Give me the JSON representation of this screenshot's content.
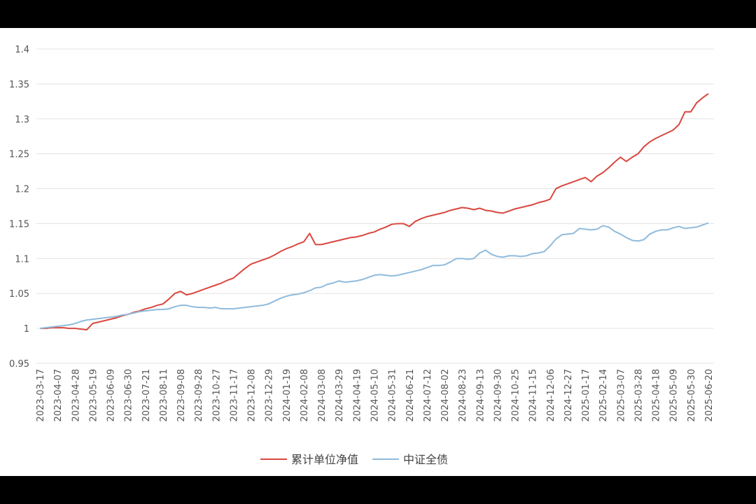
{
  "chart_data": {
    "type": "line",
    "categories": [
      "2023-03-17",
      null,
      null,
      "2023-04-07",
      null,
      null,
      "2023-04-28",
      null,
      null,
      "2023-05-19",
      null,
      null,
      "2023-06-09",
      null,
      null,
      "2023-06-30",
      null,
      null,
      "2023-07-21",
      null,
      null,
      "2023-08-11",
      null,
      null,
      "2023-09-08",
      null,
      null,
      "2023-09-28",
      null,
      null,
      "2023-10-27",
      null,
      null,
      "2023-11-17",
      null,
      null,
      "2023-12-08",
      null,
      null,
      "2023-12-29",
      null,
      null,
      "2024-01-19",
      null,
      null,
      "2024-02-08",
      null,
      null,
      "2024-03-08",
      null,
      null,
      "2024-03-29",
      null,
      null,
      "2024-04-19",
      null,
      null,
      "2024-05-10",
      null,
      null,
      "2024-05-31",
      null,
      null,
      "2024-06-21",
      null,
      null,
      "2024-07-12",
      null,
      null,
      "2024-08-02",
      null,
      null,
      "2024-08-23",
      null,
      null,
      "2024-09-13",
      null,
      null,
      "2024-09-30",
      null,
      null,
      "2024-10-25",
      null,
      null,
      "2024-11-15",
      null,
      null,
      "2024-12-06",
      null,
      null,
      "2024-12-27",
      null,
      null,
      "2025-01-17",
      null,
      null,
      "2025-02-14",
      null,
      null,
      "2025-03-07",
      null,
      null,
      "2025-03-28",
      null,
      null,
      "2025-04-18",
      null,
      null,
      "2025-05-09",
      null,
      null,
      "2025-05-30",
      null,
      null,
      "2025-06-20"
    ],
    "series": [
      {
        "name": "累计单位净值",
        "color": "#d9473f",
        "values": [
          1.0,
          1.0,
          1.001,
          1.001,
          1.001,
          1.0,
          1.0,
          0.999,
          0.998,
          1.007,
          1.009,
          1.011,
          1.013,
          1.015,
          1.018,
          1.02,
          1.023,
          1.025,
          1.028,
          1.03,
          1.033,
          1.035,
          1.042,
          1.05,
          1.053,
          1.048,
          1.05,
          1.053,
          1.056,
          1.059,
          1.062,
          1.065,
          1.069,
          1.072,
          1.079,
          1.086,
          1.092,
          1.095,
          1.098,
          1.101,
          1.105,
          1.11,
          1.114,
          1.117,
          1.121,
          1.124,
          1.136,
          1.12,
          1.12,
          1.122,
          1.124,
          1.126,
          1.128,
          1.13,
          1.131,
          1.133,
          1.136,
          1.138,
          1.142,
          1.145,
          1.149,
          1.15,
          1.15,
          1.146,
          1.153,
          1.157,
          1.16,
          1.162,
          1.164,
          1.166,
          1.169,
          1.171,
          1.173,
          1.172,
          1.17,
          1.172,
          1.169,
          1.168,
          1.166,
          1.165,
          1.168,
          1.171,
          1.173,
          1.175,
          1.177,
          1.18,
          1.182,
          1.185,
          1.2,
          1.204,
          1.207,
          1.21,
          1.213,
          1.216,
          1.21,
          1.218,
          1.223,
          1.23,
          1.238,
          1.245,
          1.239,
          1.245,
          1.25,
          1.26,
          1.267,
          1.272,
          1.276,
          1.28,
          1.284,
          1.292,
          1.31,
          1.31,
          1.323,
          1.33,
          1.336
        ]
      },
      {
        "name": "中证全债",
        "color": "#8fbbdc",
        "values": [
          1.0,
          1.001,
          1.002,
          1.003,
          1.004,
          1.005,
          1.007,
          1.01,
          1.012,
          1.013,
          1.014,
          1.015,
          1.016,
          1.017,
          1.019,
          1.02,
          1.022,
          1.024,
          1.025,
          1.026,
          1.027,
          1.027,
          1.028,
          1.031,
          1.033,
          1.033,
          1.031,
          1.03,
          1.03,
          1.029,
          1.03,
          1.028,
          1.028,
          1.028,
          1.029,
          1.03,
          1.031,
          1.032,
          1.033,
          1.035,
          1.039,
          1.043,
          1.046,
          1.048,
          1.049,
          1.051,
          1.054,
          1.058,
          1.059,
          1.063,
          1.065,
          1.068,
          1.066,
          1.067,
          1.068,
          1.07,
          1.073,
          1.076,
          1.077,
          1.076,
          1.075,
          1.076,
          1.078,
          1.08,
          1.082,
          1.084,
          1.087,
          1.09,
          1.09,
          1.091,
          1.095,
          1.1,
          1.1,
          1.099,
          1.1,
          1.108,
          1.112,
          1.106,
          1.103,
          1.102,
          1.104,
          1.104,
          1.103,
          1.104,
          1.107,
          1.108,
          1.11,
          1.118,
          1.128,
          1.134,
          1.135,
          1.136,
          1.143,
          1.142,
          1.141,
          1.142,
          1.147,
          1.145,
          1.139,
          1.135,
          1.13,
          1.126,
          1.125,
          1.127,
          1.135,
          1.139,
          1.141,
          1.141,
          1.144,
          1.146,
          1.143,
          1.144,
          1.145,
          1.148,
          1.151
        ]
      }
    ],
    "ylim": [
      0.95,
      1.4
    ],
    "yticks": [
      0.95,
      1,
      1.05,
      1.1,
      1.15,
      1.2,
      1.25,
      1.3,
      1.35,
      1.4
    ],
    "grid": true,
    "legend": "bottom"
  }
}
